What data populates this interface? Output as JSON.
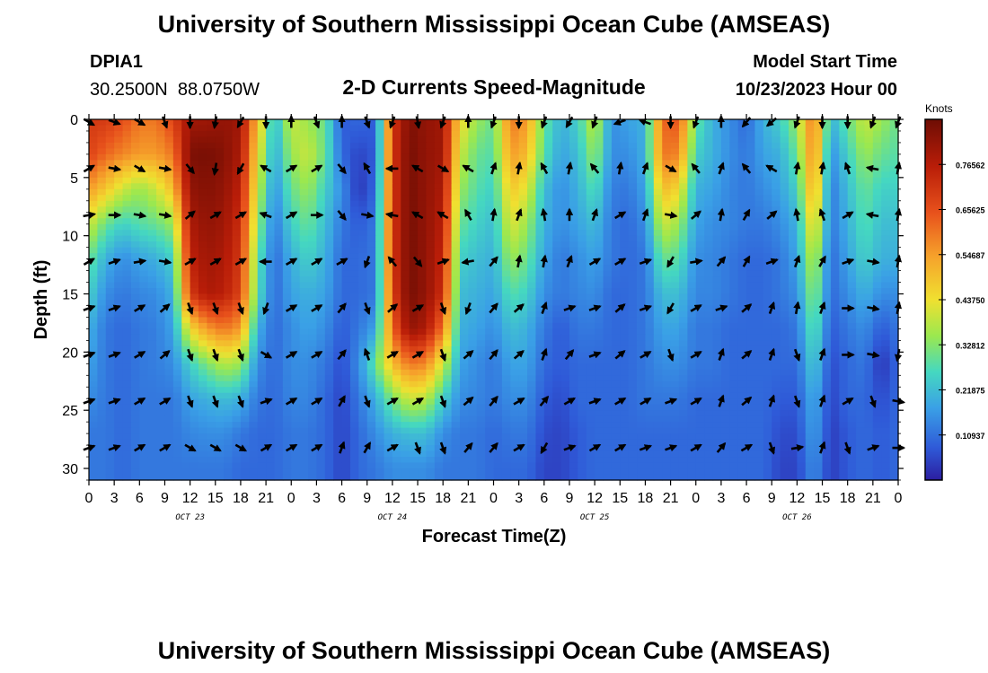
{
  "chart_data": {
    "type": "heatmap",
    "title": "University of Southern Mississippi Ocean Cube (AMSEAS)",
    "station_id": "DPIA1",
    "station_location": "30.2500N  88.0750W",
    "subtitle": "2-D Currents Speed-Magnitude",
    "model_start_label": "Model Start Time",
    "model_start_value": "10/23/2023 Hour 00",
    "xlabel": "Forecast Time(Z)",
    "ylabel": "Depth (ft)",
    "x_ticks": [
      "0",
      "3",
      "6",
      "9",
      "12",
      "15",
      "18",
      "21",
      "0",
      "3",
      "6",
      "9",
      "12",
      "15",
      "18",
      "21",
      "0",
      "3",
      "6",
      "9",
      "12",
      "15",
      "18",
      "21",
      "0",
      "3",
      "6",
      "9",
      "12",
      "15",
      "18",
      "21",
      "0"
    ],
    "day_labels": [
      {
        "text": "OCT 23",
        "hour": 12
      },
      {
        "text": "OCT 24",
        "hour": 36
      },
      {
        "text": "OCT 25",
        "hour": 60
      },
      {
        "text": "OCT 26",
        "hour": 84
      }
    ],
    "xlim": [
      0,
      96
    ],
    "ylim": [
      0,
      31
    ],
    "y_ticks": [
      "0",
      "5",
      "10",
      "15",
      "20",
      "25",
      "30"
    ],
    "y_tick_values": [
      0,
      5,
      10,
      15,
      20,
      25,
      30
    ],
    "colorbar": {
      "label": "Knots",
      "range": [
        0,
        0.875
      ],
      "ticks": [
        "0.10937",
        "0.21875",
        "0.32812",
        "0.43750",
        "0.54687",
        "0.65625",
        "0.76562"
      ],
      "tick_values": [
        0.10937,
        0.21875,
        0.32812,
        0.4375,
        0.54687,
        0.65625,
        0.76562
      ]
    },
    "speed_field": {
      "time_hours": [
        0,
        2,
        4,
        6,
        8,
        10,
        12,
        14,
        16,
        18,
        20,
        22,
        24,
        26,
        28,
        30,
        32,
        34,
        36,
        38,
        40,
        42,
        44,
        46,
        48,
        50,
        52,
        54,
        56,
        58,
        60,
        62,
        64,
        66,
        68,
        70,
        72,
        74,
        76,
        78,
        80,
        82,
        84,
        86,
        88,
        90,
        92,
        94,
        96
      ],
      "depth_ft": [
        0,
        3,
        6,
        9,
        12,
        15,
        18,
        21,
        24,
        27,
        30
      ],
      "values_knots": [
        [
          0.7,
          0.7,
          0.66,
          0.6,
          0.6,
          0.68,
          0.8,
          0.8,
          0.82,
          0.8,
          0.5,
          0.2,
          0.4,
          0.35,
          0.3,
          0.08,
          0.1,
          0.08,
          0.7,
          0.85,
          0.82,
          0.8,
          0.45,
          0.35,
          0.3,
          0.6,
          0.55,
          0.3,
          0.2,
          0.25,
          0.4,
          0.15,
          0.18,
          0.2,
          0.62,
          0.65,
          0.3,
          0.2,
          0.15,
          0.1,
          0.2,
          0.25,
          0.35,
          0.62,
          0.2,
          0.3,
          0.4,
          0.35,
          0.3
        ],
        [
          0.68,
          0.62,
          0.58,
          0.55,
          0.55,
          0.6,
          0.85,
          0.86,
          0.84,
          0.78,
          0.45,
          0.18,
          0.35,
          0.4,
          0.3,
          0.1,
          0.05,
          0.08,
          0.7,
          0.86,
          0.82,
          0.8,
          0.4,
          0.3,
          0.28,
          0.55,
          0.5,
          0.28,
          0.18,
          0.22,
          0.35,
          0.15,
          0.15,
          0.2,
          0.6,
          0.58,
          0.25,
          0.2,
          0.15,
          0.12,
          0.18,
          0.2,
          0.3,
          0.6,
          0.15,
          0.25,
          0.35,
          0.3,
          0.28
        ],
        [
          0.55,
          0.48,
          0.4,
          0.35,
          0.4,
          0.5,
          0.82,
          0.84,
          0.82,
          0.75,
          0.4,
          0.15,
          0.3,
          0.35,
          0.25,
          0.15,
          0.03,
          0.1,
          0.7,
          0.86,
          0.82,
          0.78,
          0.35,
          0.28,
          0.25,
          0.48,
          0.42,
          0.22,
          0.15,
          0.2,
          0.28,
          0.13,
          0.12,
          0.18,
          0.5,
          0.45,
          0.2,
          0.18,
          0.14,
          0.12,
          0.15,
          0.18,
          0.25,
          0.55,
          0.12,
          0.22,
          0.3,
          0.25,
          0.25
        ],
        [
          0.4,
          0.3,
          0.25,
          0.28,
          0.3,
          0.35,
          0.78,
          0.82,
          0.8,
          0.72,
          0.35,
          0.12,
          0.25,
          0.3,
          0.22,
          0.12,
          0.08,
          0.12,
          0.7,
          0.86,
          0.82,
          0.76,
          0.3,
          0.25,
          0.22,
          0.42,
          0.35,
          0.2,
          0.15,
          0.18,
          0.22,
          0.12,
          0.1,
          0.15,
          0.4,
          0.35,
          0.18,
          0.15,
          0.14,
          0.12,
          0.12,
          0.15,
          0.2,
          0.48,
          0.12,
          0.2,
          0.28,
          0.22,
          0.22
        ],
        [
          0.3,
          0.2,
          0.15,
          0.18,
          0.2,
          0.25,
          0.75,
          0.8,
          0.78,
          0.7,
          0.3,
          0.1,
          0.2,
          0.25,
          0.2,
          0.1,
          0.1,
          0.12,
          0.7,
          0.86,
          0.82,
          0.74,
          0.25,
          0.22,
          0.2,
          0.35,
          0.3,
          0.18,
          0.12,
          0.15,
          0.18,
          0.12,
          0.1,
          0.12,
          0.3,
          0.28,
          0.15,
          0.14,
          0.12,
          0.1,
          0.1,
          0.12,
          0.18,
          0.4,
          0.1,
          0.18,
          0.25,
          0.2,
          0.2
        ],
        [
          0.25,
          0.15,
          0.12,
          0.14,
          0.15,
          0.2,
          0.7,
          0.78,
          0.76,
          0.68,
          0.28,
          0.1,
          0.18,
          0.2,
          0.18,
          0.1,
          0.1,
          0.12,
          0.68,
          0.86,
          0.82,
          0.72,
          0.22,
          0.2,
          0.18,
          0.28,
          0.25,
          0.15,
          0.12,
          0.14,
          0.15,
          0.1,
          0.1,
          0.12,
          0.22,
          0.22,
          0.14,
          0.14,
          0.12,
          0.1,
          0.1,
          0.12,
          0.15,
          0.35,
          0.1,
          0.15,
          0.2,
          0.15,
          0.15
        ],
        [
          0.2,
          0.12,
          0.1,
          0.12,
          0.13,
          0.18,
          0.45,
          0.55,
          0.6,
          0.55,
          0.2,
          0.1,
          0.15,
          0.18,
          0.15,
          0.08,
          0.12,
          0.18,
          0.62,
          0.82,
          0.78,
          0.6,
          0.2,
          0.18,
          0.15,
          0.22,
          0.2,
          0.12,
          0.08,
          0.12,
          0.12,
          0.1,
          0.1,
          0.12,
          0.18,
          0.18,
          0.12,
          0.12,
          0.1,
          0.1,
          0.1,
          0.1,
          0.12,
          0.3,
          0.08,
          0.12,
          0.15,
          0.08,
          0.12
        ],
        [
          0.18,
          0.12,
          0.1,
          0.12,
          0.13,
          0.15,
          0.25,
          0.32,
          0.38,
          0.35,
          0.15,
          0.1,
          0.15,
          0.15,
          0.12,
          0.06,
          0.15,
          0.3,
          0.5,
          0.6,
          0.58,
          0.4,
          0.18,
          0.15,
          0.12,
          0.18,
          0.18,
          0.1,
          0.08,
          0.1,
          0.1,
          0.1,
          0.1,
          0.12,
          0.15,
          0.15,
          0.12,
          0.12,
          0.1,
          0.1,
          0.1,
          0.1,
          0.1,
          0.25,
          0.06,
          0.1,
          0.12,
          0.03,
          0.1
        ],
        [
          0.15,
          0.12,
          0.1,
          0.12,
          0.12,
          0.12,
          0.18,
          0.2,
          0.22,
          0.2,
          0.12,
          0.1,
          0.14,
          0.14,
          0.1,
          0.05,
          0.12,
          0.2,
          0.32,
          0.4,
          0.38,
          0.25,
          0.15,
          0.14,
          0.12,
          0.15,
          0.15,
          0.08,
          0.06,
          0.1,
          0.1,
          0.1,
          0.1,
          0.12,
          0.12,
          0.12,
          0.1,
          0.1,
          0.1,
          0.1,
          0.1,
          0.08,
          0.08,
          0.2,
          0.05,
          0.1,
          0.1,
          0.06,
          0.1
        ],
        [
          0.12,
          0.12,
          0.1,
          0.12,
          0.12,
          0.12,
          0.14,
          0.15,
          0.15,
          0.12,
          0.1,
          0.1,
          0.12,
          0.12,
          0.1,
          0.05,
          0.1,
          0.15,
          0.2,
          0.22,
          0.22,
          0.15,
          0.12,
          0.12,
          0.1,
          0.12,
          0.12,
          0.06,
          0.05,
          0.08,
          0.1,
          0.1,
          0.1,
          0.1,
          0.1,
          0.1,
          0.1,
          0.1,
          0.1,
          0.1,
          0.1,
          0.06,
          0.06,
          0.18,
          0.04,
          0.08,
          0.1,
          0.08,
          0.1
        ],
        [
          0.12,
          0.12,
          0.1,
          0.12,
          0.12,
          0.12,
          0.12,
          0.12,
          0.12,
          0.1,
          0.1,
          0.1,
          0.12,
          0.12,
          0.1,
          0.05,
          0.1,
          0.12,
          0.15,
          0.15,
          0.15,
          0.12,
          0.12,
          0.12,
          0.1,
          0.1,
          0.1,
          0.05,
          0.05,
          0.08,
          0.1,
          0.1,
          0.1,
          0.1,
          0.1,
          0.1,
          0.1,
          0.1,
          0.1,
          0.1,
          0.1,
          0.05,
          0.05,
          0.15,
          0.04,
          0.08,
          0.1,
          0.08,
          0.1
        ]
      ]
    },
    "vector_field": {
      "time_hours": [
        0,
        3,
        6,
        9,
        12,
        15,
        18,
        21,
        24,
        27,
        30,
        33,
        36,
        39,
        42,
        45,
        48,
        51,
        54,
        57,
        60,
        63,
        66,
        69,
        72,
        75,
        78,
        81,
        84,
        87,
        90,
        93,
        96
      ],
      "depth_ft": [
        0,
        4,
        8,
        12,
        16,
        20,
        24,
        28
      ],
      "directions_deg": [
        [
          120,
          110,
          120,
          160,
          180,
          190,
          210,
          180,
          0,
          160,
          0,
          160,
          200,
          170,
          200,
          0,
          200,
          180,
          200,
          210,
          200,
          250,
          290,
          180,
          200,
          0,
          220,
          230,
          200,
          180,
          180,
          200,
          200
        ],
        [
          60,
          100,
          120,
          100,
          140,
          190,
          210,
          300,
          60,
          60,
          140,
          330,
          270,
          300,
          120,
          300,
          20,
          10,
          330,
          10,
          320,
          10,
          20,
          120,
          320,
          20,
          320,
          300,
          10,
          10,
          340,
          280,
          10
        ],
        [
          80,
          90,
          100,
          100,
          50,
          60,
          60,
          290,
          60,
          90,
          140,
          100,
          280,
          300,
          300,
          330,
          10,
          20,
          350,
          0,
          20,
          60,
          20,
          100,
          50,
          10,
          30,
          50,
          350,
          340,
          60,
          280,
          10
        ],
        [
          60,
          70,
          80,
          100,
          60,
          60,
          60,
          270,
          60,
          60,
          60,
          200,
          320,
          140,
          70,
          260,
          40,
          10,
          10,
          20,
          60,
          60,
          70,
          210,
          80,
          40,
          30,
          70,
          20,
          30,
          70,
          100,
          10
        ],
        [
          70,
          70,
          60,
          50,
          160,
          160,
          160,
          200,
          60,
          60,
          40,
          160,
          50,
          60,
          160,
          200,
          40,
          50,
          20,
          70,
          70,
          50,
          70,
          210,
          60,
          70,
          50,
          20,
          10,
          20,
          90,
          100,
          10
        ],
        [
          70,
          70,
          60,
          50,
          160,
          160,
          160,
          120,
          60,
          60,
          40,
          340,
          60,
          60,
          160,
          50,
          40,
          50,
          20,
          40,
          70,
          50,
          60,
          160,
          60,
          20,
          50,
          20,
          160,
          20,
          90,
          100,
          190
        ],
        [
          70,
          70,
          60,
          60,
          160,
          160,
          160,
          70,
          60,
          60,
          30,
          160,
          60,
          60,
          160,
          50,
          40,
          60,
          40,
          60,
          70,
          60,
          60,
          70,
          60,
          20,
          50,
          20,
          160,
          20,
          60,
          160,
          100
        ],
        [
          70,
          70,
          60,
          60,
          120,
          120,
          120,
          60,
          60,
          60,
          20,
          30,
          60,
          160,
          160,
          40,
          40,
          60,
          210,
          70,
          60,
          60,
          70,
          70,
          60,
          40,
          60,
          160,
          80,
          20,
          160,
          70,
          90
        ]
      ]
    }
  },
  "footer_title": "University of Southern Mississippi Ocean Cube (AMSEAS)",
  "colors": {
    "arrow": "#000000",
    "axis": "#000000"
  }
}
